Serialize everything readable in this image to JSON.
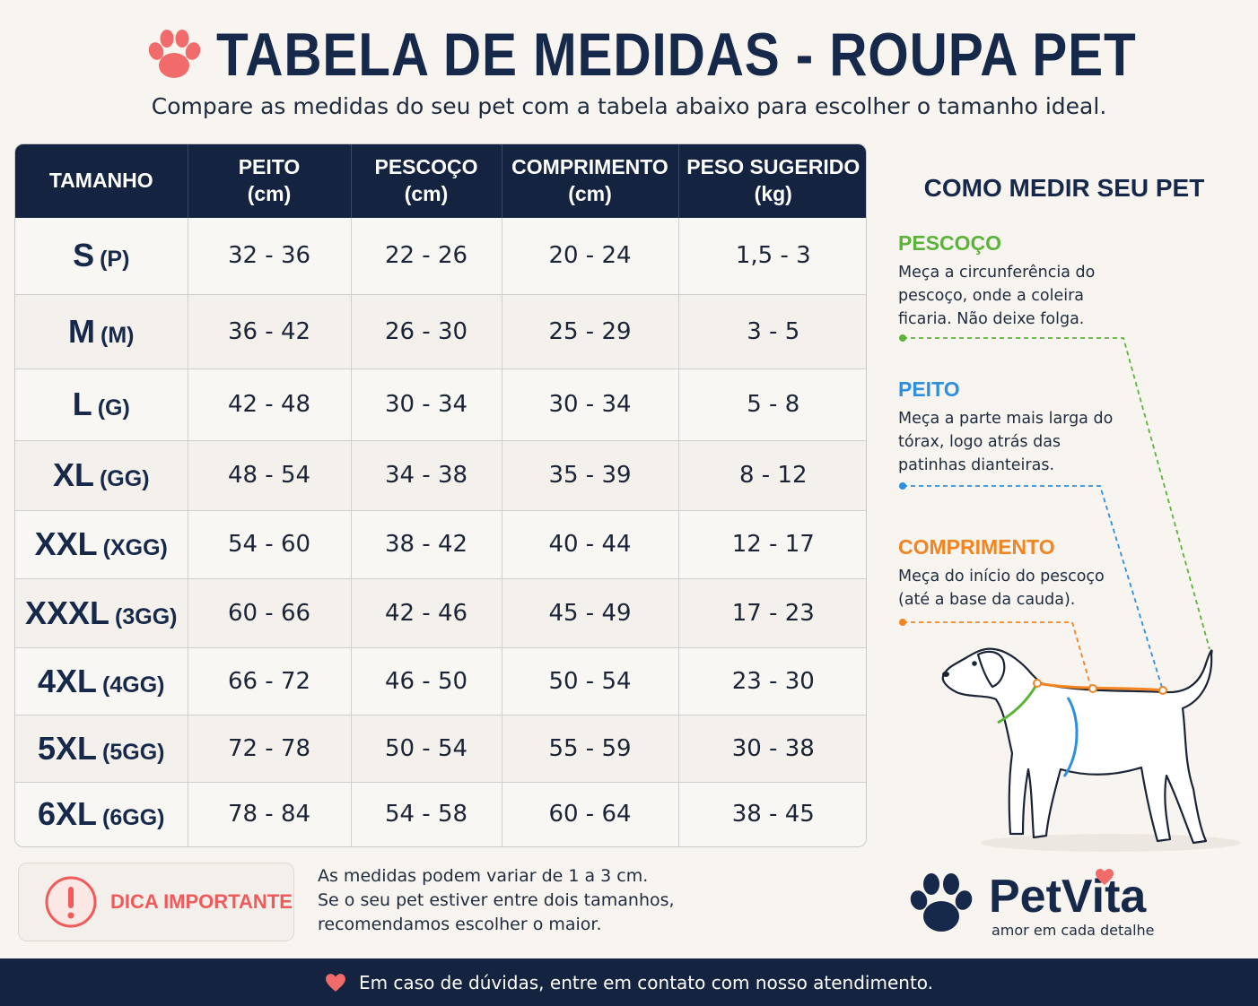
{
  "header": {
    "title": "TABELA DE MEDIDAS - ROUPA PET",
    "subtitle": "Compare as medidas do seu pet com a tabela abaixo para escolher o tamanho ideal."
  },
  "table": {
    "headers": [
      {
        "line1": "TAMANHO",
        "line2": ""
      },
      {
        "line1": "PEITO",
        "line2": "(cm)"
      },
      {
        "line1": "PESCOÇO",
        "line2": "(cm)"
      },
      {
        "line1": "COMPRIMENTO",
        "line2": "(cm)"
      },
      {
        "line1": "PESO SUGERIDO",
        "line2": "(kg)"
      }
    ],
    "rows": [
      {
        "size": "S",
        "size_br": "(P)",
        "peito": "32 - 36",
        "pescoco": "22 - 26",
        "comprimento": "20 - 24",
        "peso": "1,5 - 3"
      },
      {
        "size": "M",
        "size_br": "(M)",
        "peito": "36 - 42",
        "pescoco": "26 - 30",
        "comprimento": "25 - 29",
        "peso": "3 - 5"
      },
      {
        "size": "L",
        "size_br": "(G)",
        "peito": "42 - 48",
        "pescoco": "30 - 34",
        "comprimento": "30 - 34",
        "peso": "5 - 8"
      },
      {
        "size": "XL",
        "size_br": "(GG)",
        "peito": "48 - 54",
        "pescoco": "34 - 38",
        "comprimento": "35 - 39",
        "peso": "8 - 12"
      },
      {
        "size": "XXL",
        "size_br": "(XGG)",
        "peito": "54 - 60",
        "pescoco": "38 - 42",
        "comprimento": "40 - 44",
        "peso": "12 - 17"
      },
      {
        "size": "XXXL",
        "size_br": "(3GG)",
        "peito": "60 - 66",
        "pescoco": "42 - 46",
        "comprimento": "45 - 49",
        "peso": "17 - 23"
      },
      {
        "size": "4XL",
        "size_br": "(4GG)",
        "peito": "66 - 72",
        "pescoco": "46 - 50",
        "comprimento": "50 - 54",
        "peso": "23 - 30"
      },
      {
        "size": "5XL",
        "size_br": "(5GG)",
        "peito": "72 - 78",
        "pescoco": "50 - 54",
        "comprimento": "55 - 59",
        "peso": "30 - 38"
      },
      {
        "size": "6XL",
        "size_br": "(6GG)",
        "peito": "78 - 84",
        "pescoco": "54 - 58",
        "comprimento": "60 - 64",
        "peso": "38 - 45"
      }
    ]
  },
  "how_to": {
    "title": "COMO MEDIR SEU PET",
    "pescoco": {
      "label": "PESCOÇO",
      "text": "Meça a circunferência do pescoço, onde a coleira ficaria. Não deixe folga.",
      "color": "#5cb33a"
    },
    "peito": {
      "label": "PEITO",
      "text": "Meça a parte mais larga do tórax, logo atrás das patinhas dianteiras.",
      "color": "#2e8fe0"
    },
    "comprimento": {
      "label": "COMPRIMENTO",
      "text": "Meça do início do pescoço (até a base da cauda).",
      "color": "#f28422"
    }
  },
  "tip": {
    "label": "DICA IMPORTANTE",
    "line1": "As medidas podem variar de 1 a 3 cm.",
    "line2": "Se o seu pet estiver entre dois tamanhos,",
    "line3": "recomendamos escolher o maior."
  },
  "brand": {
    "name": "PetVita",
    "tagline": "amor em cada detalhe"
  },
  "footer": {
    "text": "Em caso de dúvidas, entre em contato com nosso atendimento."
  },
  "colors": {
    "navy": "#142440",
    "accent_pink": "#f26b6b",
    "background": "#f8f5f0"
  },
  "icons": [
    "paw-icon",
    "alert-icon",
    "dog-illustration",
    "heart-icon",
    "brand-paw-icon"
  ]
}
